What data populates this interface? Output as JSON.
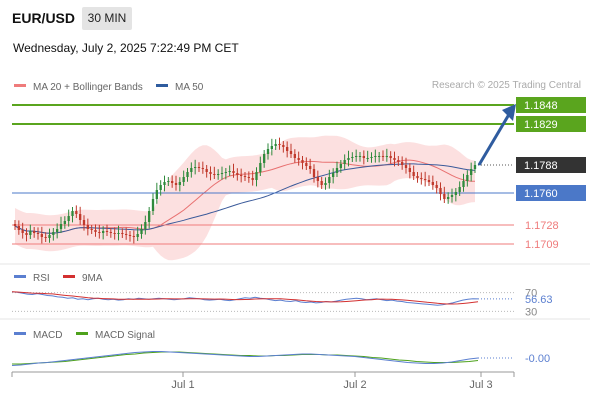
{
  "header": {
    "symbol": "EUR/USD",
    "timeframe": "30 MIN",
    "datetime": "Wednesday, July 2, 2025 7:22:49 PM CET",
    "credit": "Research © 2025 Trading Central"
  },
  "colors": {
    "resistance": "#5aa51e",
    "support": "#ef7b7b",
    "pivot": "#4b78c8",
    "last_price": "#333333",
    "bull_candle": "#2f8a3c",
    "bear_candle": "#c0392b",
    "bollinger_fill": "#fbdada",
    "ma20": "#e87070",
    "ma50": "#3a5a9a",
    "arrow": "#2f5c9f",
    "rsi": "#5b7fd0",
    "rsi_ma": "#d33030",
    "macd": "#5b7fd0",
    "macd_signal": "#4ea21c"
  },
  "chart_data": [
    {
      "type": "candlestick",
      "title": "EUR/USD",
      "timeframe": "30 MIN",
      "legend": [
        {
          "name": "MA 20 + Bollinger Bands",
          "color": "#ef7b7b"
        },
        {
          "name": "MA 50",
          "color": "#2f5c9f"
        }
      ],
      "x_ticks": [
        "Jul 1",
        "Jul 2",
        "Jul 3"
      ],
      "ylim": [
        1.1695,
        1.1856
      ],
      "levels": [
        {
          "label": "1.1848",
          "value": 1.1848,
          "kind": "resistance"
        },
        {
          "label": "1.1829",
          "value": 1.1829,
          "kind": "resistance"
        },
        {
          "label": "1.1788",
          "value": 1.1788,
          "kind": "last"
        },
        {
          "label": "1.1760",
          "value": 1.176,
          "kind": "pivot"
        },
        {
          "label": "1.1728",
          "value": 1.1728,
          "kind": "support"
        },
        {
          "label": "1.1709",
          "value": 1.1709,
          "kind": "support"
        }
      ],
      "close_series": [
        1.1727,
        1.1723,
        1.172,
        1.1718,
        1.1722,
        1.172,
        1.1719,
        1.1716,
        1.1715,
        1.1718,
        1.1721,
        1.1724,
        1.1729,
        1.1732,
        1.1737,
        1.1742,
        1.1739,
        1.1733,
        1.1728,
        1.1724,
        1.1723,
        1.1721,
        1.172,
        1.1722,
        1.1721,
        1.172,
        1.1719,
        1.172,
        1.1719,
        1.1718,
        1.1717,
        1.1716,
        1.1719,
        1.1724,
        1.1731,
        1.1742,
        1.1754,
        1.1763,
        1.1768,
        1.1771,
        1.1772,
        1.177,
        1.1768,
        1.1771,
        1.1776,
        1.1781,
        1.1785,
        1.1786,
        1.1785,
        1.1784,
        1.1781,
        1.1779,
        1.1778,
        1.1779,
        1.178,
        1.1781,
        1.1782,
        1.178,
        1.1778,
        1.1777,
        1.1776,
        1.1775,
        1.1773,
        1.1781,
        1.179,
        1.1799,
        1.1804,
        1.1807,
        1.1809,
        1.1808,
        1.1806,
        1.1802,
        1.1799,
        1.1795,
        1.1793,
        1.179,
        1.1787,
        1.1784,
        1.1776,
        1.1772,
        1.1768,
        1.177,
        1.1776,
        1.178,
        1.1785,
        1.1789,
        1.1793,
        1.1795,
        1.1796,
        1.1797,
        1.1797,
        1.1795,
        1.1795,
        1.1796,
        1.1797,
        1.1797,
        1.1796,
        1.1797,
        1.1795,
        1.1793,
        1.1791,
        1.1788,
        1.1785,
        1.1781,
        1.1777,
        1.1775,
        1.1774,
        1.1773,
        1.1771,
        1.1768,
        1.1765,
        1.1759,
        1.1754,
        1.1756,
        1.1758,
        1.1761,
        1.1766,
        1.1772,
        1.1778,
        1.1784,
        1.1788
      ],
      "moving_averages": {
        "ma20_last": 1.1771,
        "ma50_last": 1.1783
      },
      "forecast_target": 1.1848
    },
    {
      "type": "line",
      "title": "RSI",
      "legend": [
        {
          "name": "RSI",
          "color": "#5b7fd0"
        },
        {
          "name": "9MA",
          "color": "#d33030"
        }
      ],
      "levels": [
        70,
        30
      ],
      "ylim": [
        20,
        80
      ],
      "last_value": "56.63",
      "rsi_series": [
        72,
        71,
        69,
        67,
        66,
        68,
        66,
        64,
        63,
        61,
        60,
        58,
        59,
        56,
        57,
        55,
        57,
        58,
        56,
        55,
        56,
        54,
        55,
        57,
        56,
        58,
        57,
        56,
        57,
        58,
        57,
        56,
        55,
        56,
        57,
        59,
        58,
        57,
        55,
        54,
        55,
        56,
        54,
        53,
        55,
        57,
        59,
        58,
        60,
        58,
        57,
        55,
        53,
        54,
        52,
        51,
        53,
        50,
        49,
        50,
        48,
        49,
        51,
        50,
        52,
        54,
        56,
        57,
        58,
        57,
        55,
        56,
        57,
        55,
        53,
        54,
        52,
        51,
        49,
        48,
        47,
        46,
        45,
        44,
        43,
        44,
        46,
        48,
        51,
        54,
        56,
        57,
        56.63
      ]
    },
    {
      "type": "line",
      "title": "MACD",
      "legend": [
        {
          "name": "MACD",
          "color": "#5b7fd0"
        },
        {
          "name": "MACD Signal",
          "color": "#4ea21c"
        }
      ],
      "ylim": [
        -0.0025,
        0.0025
      ],
      "last_value": "-0.00",
      "macd_series": [
        -0.0016,
        -0.0015,
        -0.0013,
        -0.0011,
        -0.001,
        -0.0008,
        -0.0006,
        -0.0004,
        -0.0002,
        0.0,
        0.0002,
        0.0004,
        0.0006,
        0.0008,
        0.001,
        0.0011,
        0.0012,
        0.0012,
        0.0011,
        0.001,
        0.0009,
        0.0008,
        0.0007,
        0.0006,
        0.0005,
        0.0004,
        0.0003,
        0.0002,
        0.0002,
        0.0003,
        0.0004,
        0.0005,
        0.0006,
        0.0007,
        0.0007,
        0.0006,
        0.0005,
        0.0004,
        0.0003,
        0.0002,
        0.0,
        -0.0002,
        -0.0004,
        -0.0006,
        -0.0008,
        -0.001,
        -0.0011,
        -0.0012,
        -0.0012,
        -0.0011,
        -0.0009,
        -0.0006,
        -0.0003,
        -0.0001
      ],
      "signal_series": [
        -0.0013,
        -0.0013,
        -0.0012,
        -0.0011,
        -0.001,
        -0.0009,
        -0.0008,
        -0.0006,
        -0.0004,
        -0.0002,
        0.0,
        0.0002,
        0.0004,
        0.0006,
        0.0007,
        0.0009,
        0.001,
        0.0011,
        0.0011,
        0.0011,
        0.001,
        0.0009,
        0.0008,
        0.0007,
        0.0006,
        0.0005,
        0.0004,
        0.0004,
        0.0003,
        0.0003,
        0.0004,
        0.0004,
        0.0005,
        0.0006,
        0.0006,
        0.0006,
        0.0005,
        0.0005,
        0.0004,
        0.0003,
        0.0002,
        0.0,
        -0.0001,
        -0.0003,
        -0.0005,
        -0.0006,
        -0.0008,
        -0.0009,
        -0.001,
        -0.001,
        -0.001,
        -0.0009,
        -0.0008,
        -0.0006
      ]
    }
  ]
}
